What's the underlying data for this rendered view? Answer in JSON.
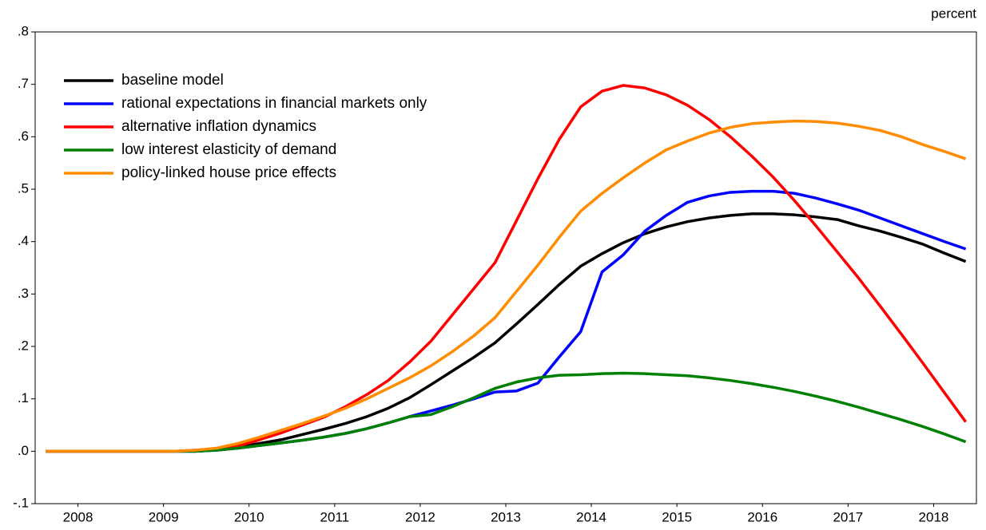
{
  "chart_data": {
    "type": "line",
    "annotation": "percent",
    "xlim": [
      2008,
      2019
    ],
    "xticks": [
      {
        "value": 2008.5,
        "label": "2008"
      },
      {
        "value": 2009.5,
        "label": "2009"
      },
      {
        "value": 2010.5,
        "label": "2010"
      },
      {
        "value": 2011.5,
        "label": "2011"
      },
      {
        "value": 2012.5,
        "label": "2012"
      },
      {
        "value": 2013.5,
        "label": "2013"
      },
      {
        "value": 2014.5,
        "label": "2014"
      },
      {
        "value": 2015.5,
        "label": "2015"
      },
      {
        "value": 2016.5,
        "label": "2016"
      },
      {
        "value": 2017.5,
        "label": "2017"
      },
      {
        "value": 2018.5,
        "label": "2018"
      }
    ],
    "ylim": [
      -0.1,
      0.8
    ],
    "yticks": [
      {
        "value": -0.1,
        "label": "-.1"
      },
      {
        "value": 0,
        "label": ".0"
      },
      {
        "value": 0.1,
        "label": ".1"
      },
      {
        "value": 0.2,
        "label": ".2"
      },
      {
        "value": 0.3,
        "label": ".3"
      },
      {
        "value": 0.4,
        "label": ".4"
      },
      {
        "value": 0.5,
        "label": ".5"
      },
      {
        "value": 0.6,
        "label": ".6"
      },
      {
        "value": 0.7,
        "label": ".7"
      },
      {
        "value": 0.8,
        "label": ".8"
      }
    ],
    "grid": false,
    "legend": "top-left",
    "x": [
      2008.125,
      2008.375,
      2008.625,
      2008.875,
      2009.125,
      2009.375,
      2009.625,
      2009.875,
      2010.125,
      2010.375,
      2010.625,
      2010.875,
      2011.125,
      2011.375,
      2011.625,
      2011.875,
      2012.125,
      2012.375,
      2012.625,
      2012.875,
      2013.125,
      2013.375,
      2013.625,
      2013.875,
      2014.125,
      2014.375,
      2014.625,
      2014.875,
      2015.125,
      2015.375,
      2015.625,
      2015.875,
      2016.125,
      2016.375,
      2016.625,
      2016.875,
      2017.125,
      2017.375,
      2017.625,
      2017.875,
      2018.125,
      2018.375,
      2018.625,
      2018.875
    ],
    "series": [
      {
        "name": "baseline model",
        "color": "#000000",
        "values": [
          0,
          0,
          0,
          0,
          0,
          0,
          0,
          0,
          0.003,
          0.008,
          0.015,
          0.022,
          0.032,
          0.042,
          0.053,
          0.066,
          0.082,
          0.102,
          0.127,
          0.153,
          0.179,
          0.207,
          0.243,
          0.28,
          0.318,
          0.353,
          0.377,
          0.398,
          0.415,
          0.428,
          0.438,
          0.445,
          0.45,
          0.453,
          0.453,
          0.451,
          0.447,
          0.442,
          0.43,
          0.42,
          0.408,
          0.395,
          0.378,
          0.362
        ]
      },
      {
        "name": "rational expectations in financial markets only",
        "color": "#0000ff",
        "values": [
          0,
          0,
          0,
          0,
          0,
          0,
          0,
          0,
          0.002,
          0.006,
          0.011,
          0.016,
          0.021,
          0.027,
          0.034,
          0.043,
          0.054,
          0.066,
          0.077,
          0.088,
          0.1,
          0.113,
          0.115,
          0.13,
          0.18,
          0.228,
          0.342,
          0.375,
          0.42,
          0.45,
          0.475,
          0.487,
          0.494,
          0.496,
          0.496,
          0.492,
          0.483,
          0.472,
          0.46,
          0.445,
          0.43,
          0.415,
          0.4,
          0.386
        ]
      },
      {
        "name": "alternative inflation dynamics",
        "color": "#ff0000",
        "values": [
          0,
          0,
          0,
          0,
          0,
          0,
          0,
          0.002,
          0.004,
          0.01,
          0.022,
          0.035,
          0.05,
          0.065,
          0.085,
          0.108,
          0.135,
          0.17,
          0.21,
          0.26,
          0.31,
          0.36,
          0.44,
          0.52,
          0.595,
          0.657,
          0.687,
          0.698,
          0.693,
          0.68,
          0.66,
          0.633,
          0.6,
          0.563,
          0.523,
          0.478,
          0.43,
          0.38,
          0.33,
          0.277,
          0.223,
          0.168,
          0.112,
          0.056
        ]
      },
      {
        "name": "low interest elasticity of demand",
        "color": "#008000",
        "values": [
          0,
          0,
          0,
          0,
          0,
          0,
          0,
          0,
          0.002,
          0.006,
          0.011,
          0.016,
          0.021,
          0.027,
          0.034,
          0.043,
          0.054,
          0.066,
          0.07,
          0.085,
          0.102,
          0.12,
          0.132,
          0.14,
          0.145,
          0.146,
          0.148,
          0.149,
          0.148,
          0.146,
          0.144,
          0.14,
          0.135,
          0.129,
          0.122,
          0.114,
          0.105,
          0.095,
          0.084,
          0.072,
          0.06,
          0.047,
          0.033,
          0.018
        ]
      },
      {
        "name": "policy-linked house price effects",
        "color": "#ff8c00",
        "values": [
          0,
          0,
          0,
          0,
          0,
          0,
          0,
          0.002,
          0.006,
          0.015,
          0.027,
          0.04,
          0.053,
          0.067,
          0.082,
          0.1,
          0.12,
          0.14,
          0.163,
          0.19,
          0.22,
          0.255,
          0.305,
          0.355,
          0.408,
          0.458,
          0.492,
          0.522,
          0.55,
          0.575,
          0.592,
          0.607,
          0.618,
          0.625,
          0.628,
          0.63,
          0.629,
          0.626,
          0.62,
          0.612,
          0.6,
          0.585,
          0.572,
          0.558
        ]
      }
    ]
  }
}
